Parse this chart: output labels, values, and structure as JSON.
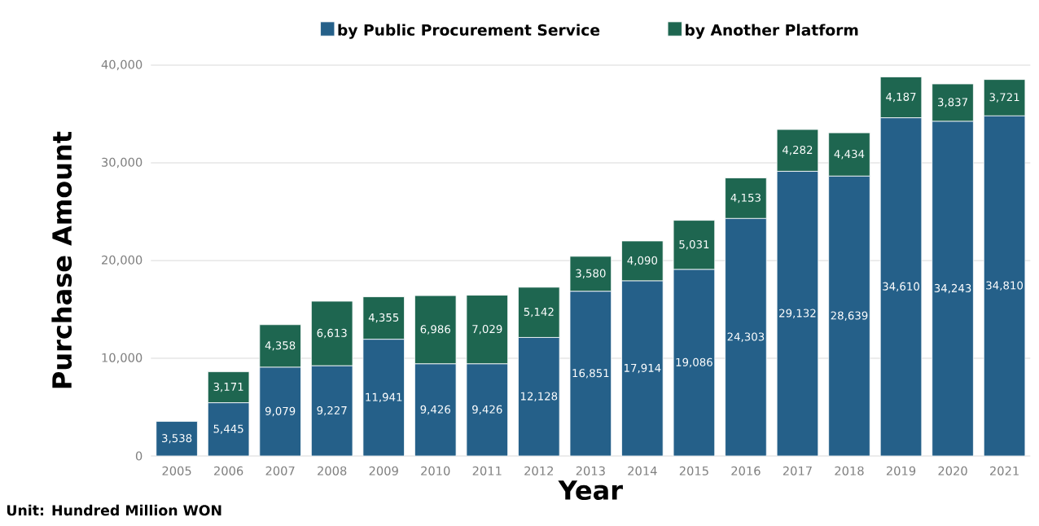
{
  "chart_data": {
    "type": "bar",
    "stacked": true,
    "xlabel": "Year",
    "ylabel": "Purchase Amount",
    "annotations": [
      "Unit: Hundred Million WON"
    ],
    "categories": [
      "2005",
      "2006",
      "2007",
      "2008",
      "2009",
      "2010",
      "2011",
      "2012",
      "2013",
      "2014",
      "2015",
      "2016",
      "2017",
      "2018",
      "2019",
      "2020",
      "2021"
    ],
    "series": [
      {
        "name": "by Public Procurement Service",
        "color": "#256089",
        "values": [
          3538,
          5445,
          9079,
          9227,
          11941,
          9426,
          9426,
          12128,
          16851,
          17914,
          19086,
          24303,
          29132,
          28639,
          34610,
          34243,
          34810
        ],
        "value_labels": [
          "3,538",
          "5,445",
          "9,079",
          "9,227",
          "11,941",
          "9,426",
          "9,426",
          "12,128",
          "16,851",
          "17,914",
          "19,086",
          "24,303",
          "29,132",
          "28,639",
          "34,610",
          "34,243",
          "34,810"
        ]
      },
      {
        "name": "by Another Platform",
        "color": "#1e6650",
        "values": [
          null,
          3171,
          4358,
          6613,
          4355,
          6986,
          7029,
          5142,
          3580,
          4090,
          5031,
          4153,
          4282,
          4434,
          4187,
          3837,
          3721
        ],
        "value_labels": [
          null,
          "3,171",
          "4,358",
          "6,613",
          "4,355",
          "6,986",
          "7,029",
          "5,142",
          "3,580",
          "4,090",
          "5,031",
          "4,153",
          "4,282",
          "4,434",
          "4,187",
          "3,837",
          "3,721"
        ]
      }
    ],
    "ylim": [
      0,
      40000
    ],
    "yticks": [
      0,
      {
        "value": 10000,
        "label": "10,000"
      },
      {
        "value": 20000,
        "label": "20,000"
      },
      {
        "value": 30000,
        "label": "30,000"
      },
      {
        "value": 40000,
        "label": "40,000"
      }
    ],
    "grid": "y",
    "legend": "top"
  }
}
